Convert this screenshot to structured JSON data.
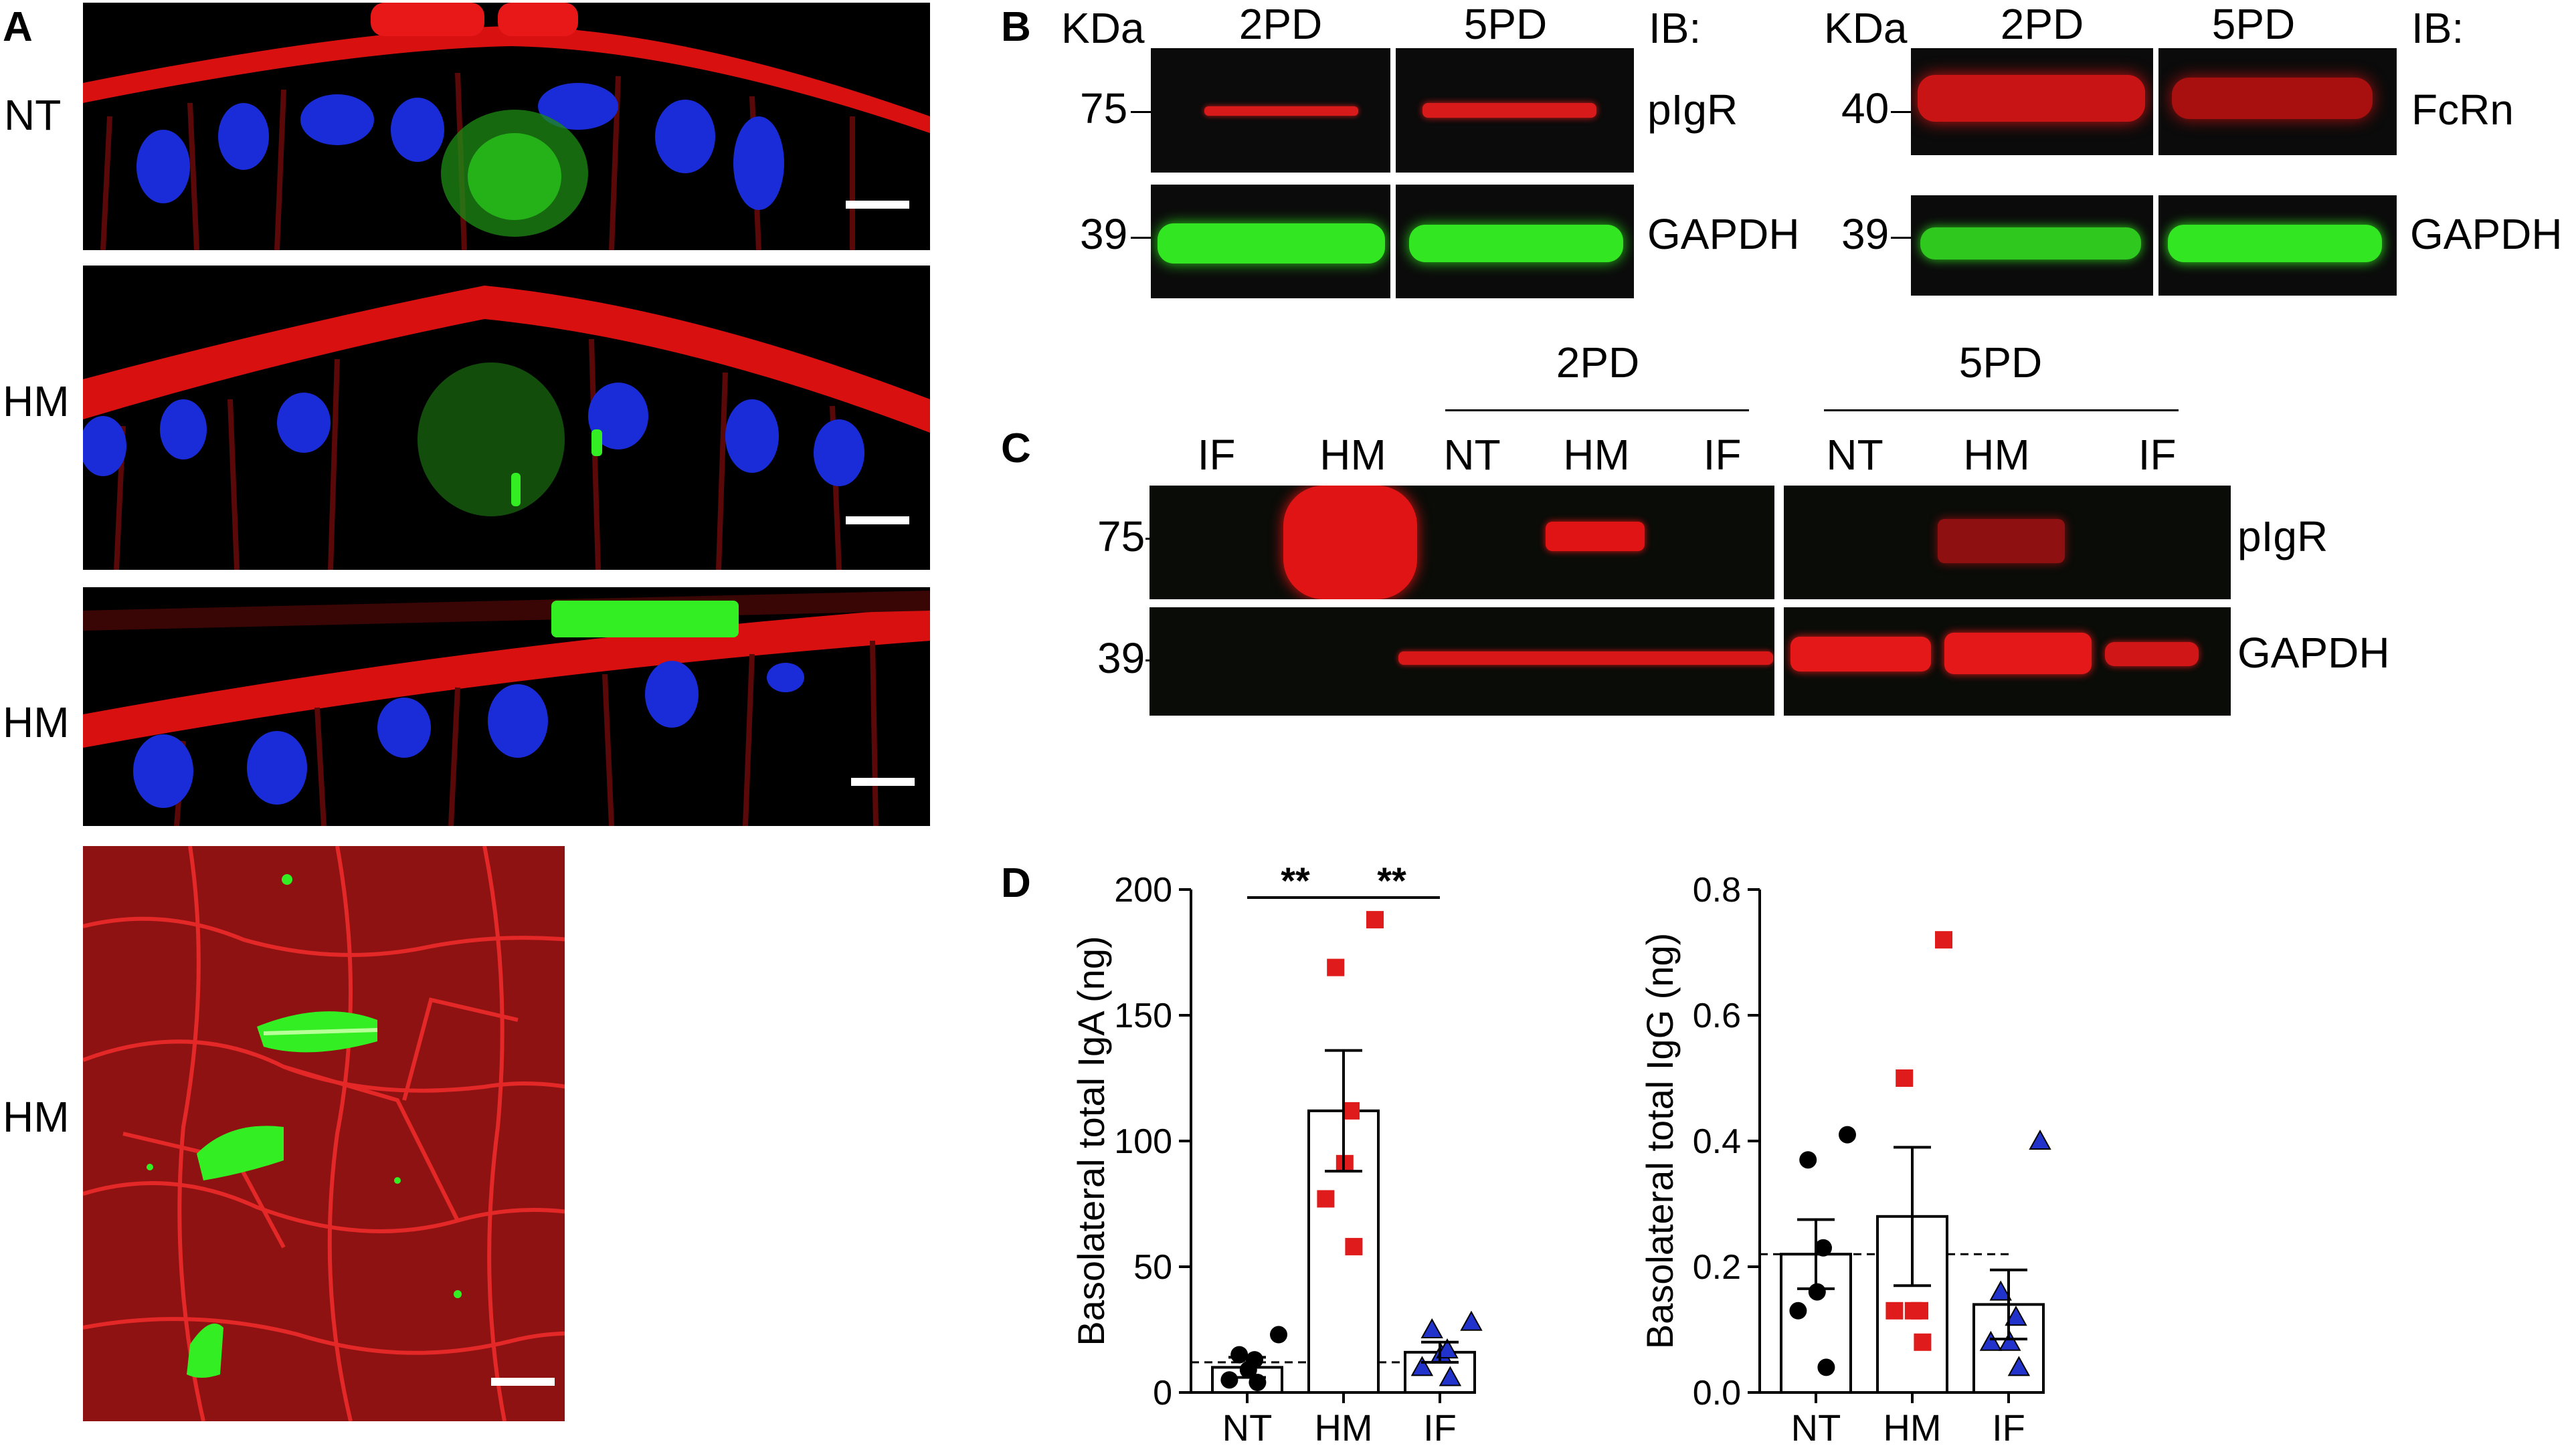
{
  "panel_a": {
    "letter": "A",
    "rows": [
      {
        "label": "NT"
      },
      {
        "label": "HM"
      },
      {
        "label": "HM"
      },
      {
        "label": "HM"
      }
    ],
    "colors": {
      "membrane": "#e01010",
      "nuclei": "#1a2bd8",
      "infection": "#33ee22"
    }
  },
  "panel_b": {
    "letter": "B",
    "left": {
      "kda": "KDa",
      "lane1": "2PD",
      "lane2": "5PD",
      "ib": "IB:",
      "marker_top": "75",
      "marker_bottom": "39",
      "target_top": "pIgR",
      "target_bottom": "GAPDH"
    },
    "right": {
      "kda": "KDa",
      "lane1": "2PD",
      "lane2": "5PD",
      "ib": "IB:",
      "marker_top": "40",
      "marker_bottom": "39",
      "target_top": "FcRn",
      "target_bottom": "GAPDH"
    }
  },
  "panel_c": {
    "letter": "C",
    "group1": "2PD",
    "group2": "5PD",
    "lanes": [
      "IF",
      "HM",
      "NT",
      "HM",
      "IF",
      "NT",
      "HM",
      "IF"
    ],
    "marker_top": "75",
    "marker_bottom": "39",
    "target_top": "pIgR",
    "target_bottom": "GAPDH"
  },
  "panel_d": {
    "letter": "D"
  },
  "chart_data": [
    {
      "type": "bar",
      "categories": [
        "NT",
        "HM",
        "IF"
      ],
      "values": [
        10,
        112,
        16
      ],
      "sem": [
        4,
        24,
        4
      ],
      "points": [
        [
          4,
          5,
          9,
          13,
          15,
          23
        ],
        [
          58,
          77,
          91,
          112,
          169,
          188
        ],
        [
          6,
          10,
          15,
          17,
          25,
          28
        ]
      ],
      "markers": [
        "circle",
        "square",
        "triangle"
      ],
      "marker_colors": [
        "#000000",
        "#e01b1b",
        "#2233cc"
      ],
      "ylabel": "Basolateral total IgA (ng)",
      "ylim": [
        0,
        200
      ],
      "yticks": [
        "0",
        "50",
        "100",
        "150",
        "200"
      ],
      "reference_line": 12,
      "significance": [
        {
          "from": "NT",
          "to": "HM",
          "label": "**"
        },
        {
          "from": "HM",
          "to": "IF",
          "label": "**"
        }
      ]
    },
    {
      "type": "bar",
      "categories": [
        "NT",
        "HM",
        "IF"
      ],
      "values": [
        0.22,
        0.28,
        0.14
      ],
      "sem": [
        0.055,
        0.11,
        0.055
      ],
      "points": [
        [
          0.04,
          0.13,
          0.16,
          0.23,
          0.37,
          0.41
        ],
        [
          0.08,
          0.13,
          0.13,
          0.13,
          0.5,
          0.72
        ],
        [
          0.04,
          0.08,
          0.08,
          0.12,
          0.16,
          0.4
        ]
      ],
      "markers": [
        "circle",
        "square",
        "triangle"
      ],
      "marker_colors": [
        "#000000",
        "#e01b1b",
        "#2233cc"
      ],
      "ylabel": "Basolateral total IgG (ng)",
      "ylim": [
        0,
        0.8
      ],
      "yticks": [
        "0.0",
        "0.2",
        "0.4",
        "0.6",
        "0.8"
      ],
      "reference_line": 0.22
    }
  ]
}
